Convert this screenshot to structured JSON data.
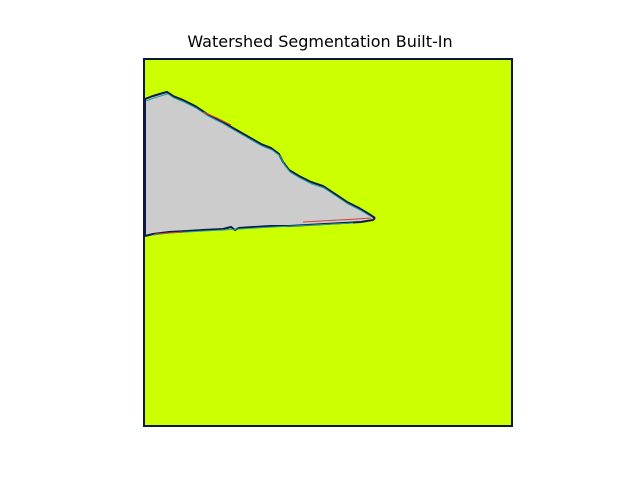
{
  "figure": {
    "title": "Watershed Segmentation Built-In"
  },
  "image": {
    "description_colors": {
      "background_region": "#ccff00",
      "foreground_region": "#cccccc",
      "boundary_dark": "#0d1b4a",
      "boundary_teal": "#1fa39a",
      "boundary_red": "#d94030",
      "frame": "#0b1a3a"
    },
    "regions": [
      {
        "label": "background",
        "color_key": "background_region"
      },
      {
        "label": "segment",
        "color_key": "foreground_region"
      }
    ]
  }
}
